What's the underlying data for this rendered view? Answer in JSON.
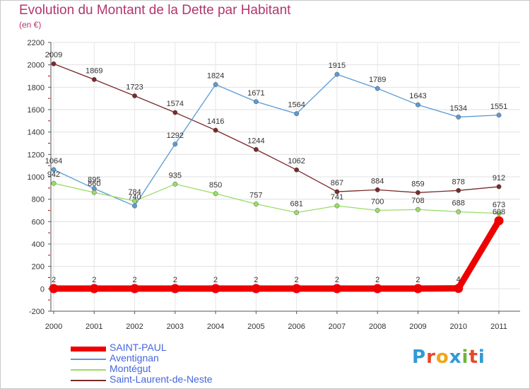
{
  "title": "Evolution du Montant de la Dette par Habitant",
  "unit_label": "(en €)",
  "logo": {
    "text": "Proxiti",
    "letters": [
      "P",
      "r",
      "o",
      "x",
      "i",
      "t",
      "i"
    ],
    "colors": [
      "#2f9ad6",
      "#e6482b",
      "#f2a516",
      "#2f9ad6",
      "#6fb53c",
      "#e6482b",
      "#2f9ad6"
    ]
  },
  "chart_data": {
    "type": "line",
    "title": "Evolution du Montant de la Dette par Habitant",
    "ylabel": "(en €)",
    "xlabel": "",
    "x": [
      "2000",
      "2001",
      "2002",
      "2003",
      "2004",
      "2005",
      "2006",
      "2007",
      "2008",
      "2009",
      "2010",
      "2011"
    ],
    "ylim": [
      -200,
      2200
    ],
    "yticks": [
      -200,
      0,
      200,
      400,
      600,
      800,
      1000,
      1200,
      1400,
      1600,
      1800,
      2000,
      2200
    ],
    "grid": true,
    "legend_position": "bottom-left",
    "series": [
      {
        "name": "SAINT-PAUL",
        "color": "#ee0000",
        "values": [
          2,
          2,
          2,
          2,
          2,
          2,
          2,
          2,
          2,
          2,
          4,
          608
        ],
        "labels": [
          "2",
          "2",
          "2",
          "2",
          "2",
          "2",
          "2",
          "2",
          "2",
          "2",
          "4",
          "608"
        ]
      },
      {
        "name": "Aventignan",
        "color": "#5a9bd4",
        "values": [
          1064,
          895,
          740,
          1292,
          1824,
          1671,
          1564,
          1915,
          1789,
          1643,
          1534,
          1551
        ],
        "labels": [
          "1064",
          "895",
          "740",
          "1292",
          "1824",
          "1671",
          "1564",
          "1915",
          "1789",
          "1643",
          "1534",
          "1551"
        ]
      },
      {
        "name": "Montégut",
        "color": "#99dd66",
        "values": [
          942,
          860,
          784,
          935,
          850,
          757,
          681,
          741,
          700,
          708,
          688,
          673
        ],
        "labels": [
          "942",
          "860",
          "784",
          "935",
          "850",
          "757",
          "681",
          "741",
          "700",
          "708",
          "688",
          "673"
        ]
      },
      {
        "name": "Saint-Laurent-de-Neste",
        "color": "#7a2a2a",
        "values": [
          2009,
          1869,
          1723,
          1574,
          1416,
          1244,
          1062,
          867,
          884,
          859,
          878,
          912
        ],
        "labels": [
          "2009",
          "1869",
          "1723",
          "1574",
          "1416",
          "1244",
          "1062",
          "867",
          "884",
          "859",
          "878",
          "912"
        ]
      }
    ]
  }
}
